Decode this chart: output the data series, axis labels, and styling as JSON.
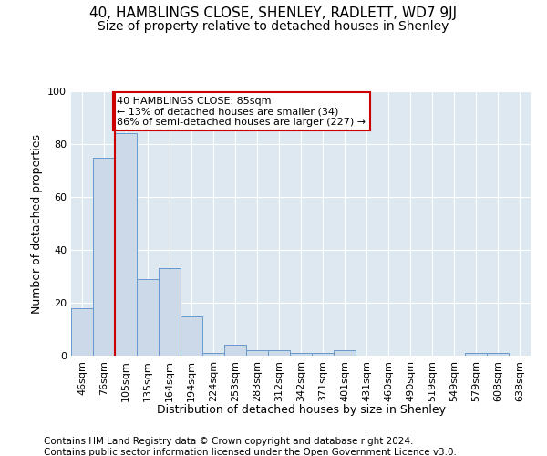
{
  "title": "40, HAMBLINGS CLOSE, SHENLEY, RADLETT, WD7 9JJ",
  "subtitle": "Size of property relative to detached houses in Shenley",
  "xlabel": "Distribution of detached houses by size in Shenley",
  "ylabel": "Number of detached properties",
  "categories": [
    "46sqm",
    "76sqm",
    "105sqm",
    "135sqm",
    "164sqm",
    "194sqm",
    "224sqm",
    "253sqm",
    "283sqm",
    "312sqm",
    "342sqm",
    "371sqm",
    "401sqm",
    "431sqm",
    "460sqm",
    "490sqm",
    "519sqm",
    "549sqm",
    "579sqm",
    "608sqm",
    "638sqm"
  ],
  "bar_heights": [
    18,
    75,
    84,
    29,
    33,
    15,
    1,
    4,
    2,
    2,
    1,
    1,
    2,
    0,
    0,
    0,
    0,
    0,
    1,
    1,
    0
  ],
  "bar_color": "#ccd9e8",
  "bar_edgecolor": "#6699cc",
  "vline_x_index": 1.5,
  "vline_color": "#cc0000",
  "annotation_text": "40 HAMBLINGS CLOSE: 85sqm\n← 13% of detached houses are smaller (34)\n86% of semi-detached houses are larger (227) →",
  "annotation_box_edgecolor": "#cc0000",
  "annotation_box_facecolor": "#ffffff",
  "ylim": [
    0,
    100
  ],
  "yticks": [
    0,
    20,
    40,
    60,
    80,
    100
  ],
  "plot_bg_color": "#dde8f0",
  "grid_color": "#ffffff",
  "footer1": "Contains HM Land Registry data © Crown copyright and database right 2024.",
  "footer2": "Contains public sector information licensed under the Open Government Licence v3.0.",
  "title_fontsize": 11,
  "subtitle_fontsize": 10,
  "xlabel_fontsize": 9,
  "ylabel_fontsize": 9,
  "tick_fontsize": 8,
  "annot_fontsize": 8,
  "footer_fontsize": 7.5
}
